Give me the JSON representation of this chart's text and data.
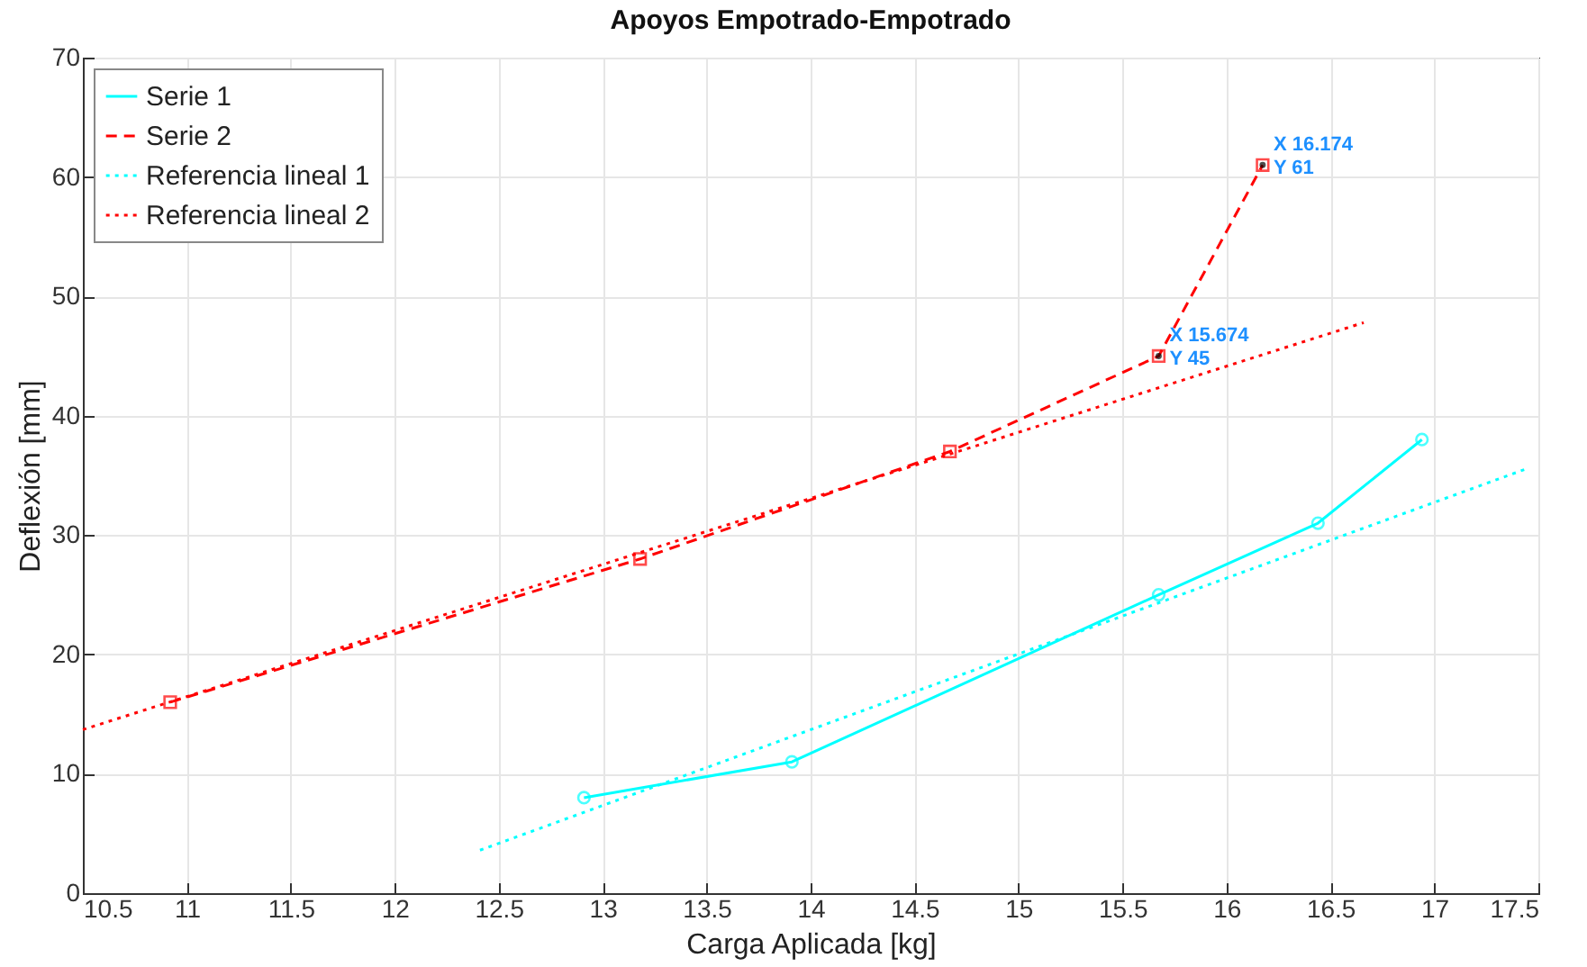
{
  "chart_data": {
    "type": "line",
    "title": "Apoyos Empotrado-Empotrado",
    "xlabel": "Carga Aplicada [kg]",
    "ylabel": "Deflexión [mm]",
    "xlim": [
      10.5,
      17.5
    ],
    "xticks": [
      10.5,
      11,
      11.5,
      12,
      12.5,
      13,
      13.5,
      14,
      14.5,
      15,
      15.5,
      16,
      16.5,
      17,
      17.5
    ],
    "ylim": [
      0,
      70
    ],
    "yticks": [
      0,
      10,
      20,
      30,
      40,
      50,
      60,
      70
    ],
    "grid": true,
    "legend": "top left",
    "series": [
      {
        "name": "Serie 1",
        "color": "#00ffff",
        "marker": "circle",
        "line_style": "solid",
        "x": [
          12.91,
          13.91,
          15.674,
          16.44,
          16.94
        ],
        "values": [
          8,
          11,
          25,
          31,
          38
        ]
      },
      {
        "name": "Serie 2",
        "color": "#ff0000",
        "marker": "square",
        "line_style": "dashed",
        "x": [
          10.92,
          13.18,
          14.67,
          15.674,
          16.174
        ],
        "values": [
          16,
          28,
          37,
          45,
          61
        ]
      },
      {
        "name": "Referencia lineal 1",
        "color": "#00ffff",
        "marker": "none",
        "line_style": "dotted",
        "x": [
          12.41,
          17.45
        ],
        "values": [
          3.6,
          35.6
        ]
      },
      {
        "name": "Referencia lineal 2",
        "color": "#ff0000",
        "marker": "none",
        "line_style": "dotted",
        "x": [
          10.5,
          16.66
        ],
        "values": [
          13.7,
          47.8
        ]
      }
    ],
    "annotations": [
      {
        "text": "X 15.674\nY 45",
        "x": 15.674,
        "y": 45
      },
      {
        "text": "X 16.174\nY 61",
        "x": 16.174,
        "y": 61
      }
    ]
  }
}
